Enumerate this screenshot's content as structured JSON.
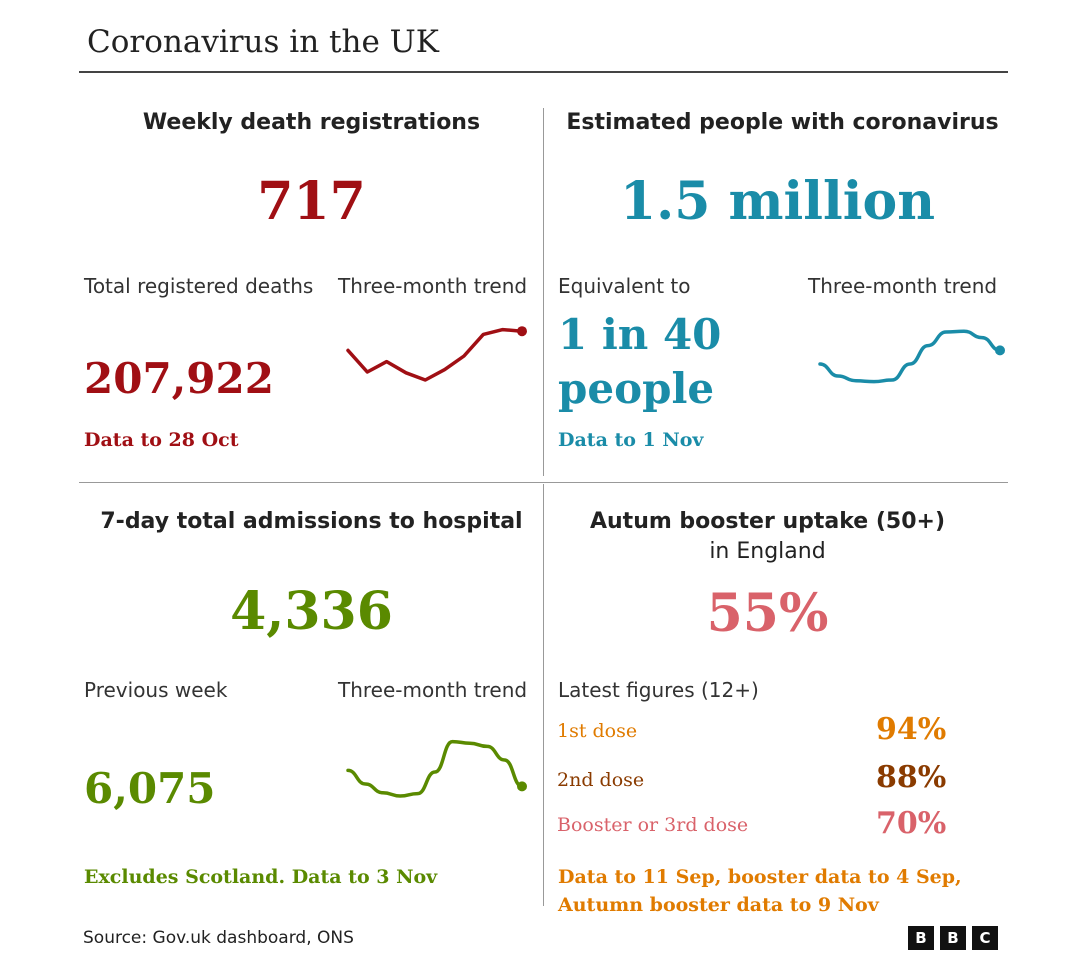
{
  "title": "Coronavirus in the UK",
  "colors": {
    "deaths": "#a00f14",
    "estimated": "#1a8ca8",
    "hospital": "#5a8a00",
    "booster": "#d9626a",
    "first_dose": "#e07b00",
    "second_dose": "#8a3b00",
    "third_dose": "#d9626a",
    "booster_note": "#e07b00"
  },
  "deaths": {
    "heading": "Weekly death registrations",
    "weekly_value": "717",
    "total_label": "Total registered deaths",
    "trend_label": "Three-month trend",
    "total_value": "207,922",
    "note": "Data to 28 Oct",
    "trend_values": [
      62,
      35,
      48,
      34,
      25,
      38,
      55,
      82,
      88,
      86
    ]
  },
  "estimated": {
    "heading": "Estimated people with coronavirus",
    "value": "1.5 million",
    "equivalent_label": "Equivalent to",
    "trend_label": "Three-month trend",
    "equivalent_line1": "1 in 40",
    "equivalent_line2": "people",
    "note": "Data to 1 Nov",
    "trend_values": [
      45,
      30,
      24,
      23,
      25,
      45,
      68,
      85,
      86,
      78,
      62
    ]
  },
  "hospital": {
    "heading": "7-day total admissions to hospital",
    "value": "4,336",
    "previous_label": "Previous week",
    "trend_label": "Three-month trend",
    "previous_value": "6,075",
    "note": "Excludes Scotland. Data to 3 Nov",
    "trend_values": [
      42,
      25,
      14,
      10,
      13,
      40,
      78,
      76,
      72,
      55,
      22
    ]
  },
  "booster": {
    "heading": "Autum booster uptake (50+)",
    "subheading": "in England",
    "value": "55%",
    "latest_label": "Latest figures (12+)",
    "doses": [
      {
        "label": "1st dose",
        "value": "94%"
      },
      {
        "label": "2nd dose",
        "value": "88%"
      },
      {
        "label": "Booster or 3rd dose",
        "value": "70%"
      }
    ],
    "note_line1": "Data to 11 Sep, booster data to 4 Sep,",
    "note_line2": "Autumn booster data to 9 Nov"
  },
  "source": "Source: Gov.uk dashboard, ONS",
  "logo": {
    "letters": [
      "B",
      "B",
      "C"
    ]
  }
}
